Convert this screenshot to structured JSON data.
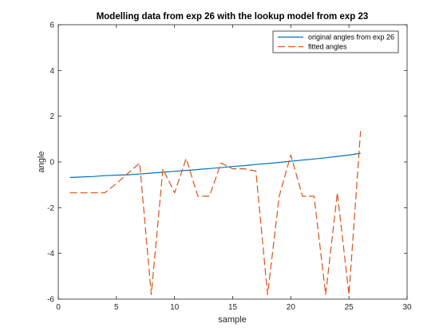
{
  "chart_data": {
    "type": "line",
    "title": "Modelling data from exp 26 with the lookup model from exp 23",
    "xlabel": "sample",
    "ylabel": "angle",
    "xlim": [
      0,
      30
    ],
    "ylim": [
      -6,
      6
    ],
    "xticks": [
      0,
      5,
      10,
      15,
      20,
      25,
      30
    ],
    "yticks": [
      -6,
      -4,
      -2,
      0,
      2,
      4,
      6
    ],
    "grid": false,
    "legend_position": "top-right",
    "series": [
      {
        "name": "original angles from exp 26",
        "style": "solid",
        "color": "#0072BD",
        "x": [
          1,
          2,
          3,
          4,
          5,
          6,
          7,
          8,
          9,
          10,
          11,
          12,
          13,
          14,
          15,
          16,
          17,
          18,
          19,
          20,
          21,
          22,
          23,
          24,
          25,
          26
        ],
        "y": [
          -0.68,
          -0.66,
          -0.64,
          -0.6,
          -0.58,
          -0.56,
          -0.53,
          -0.49,
          -0.45,
          -0.41,
          -0.37,
          -0.33,
          -0.29,
          -0.25,
          -0.2,
          -0.16,
          -0.11,
          -0.07,
          -0.02,
          0.03,
          0.08,
          0.13,
          0.18,
          0.24,
          0.3,
          0.38
        ]
      },
      {
        "name": "fitted angles",
        "style": "dashed",
        "color": "#D95319",
        "x": [
          1,
          2,
          3,
          4,
          5,
          6,
          7,
          8,
          9,
          10,
          11,
          12,
          13,
          14,
          15,
          16,
          17,
          18,
          19,
          20,
          21,
          22,
          23,
          24,
          25,
          26
        ],
        "y": [
          -1.35,
          -1.35,
          -1.35,
          -1.35,
          -0.95,
          -0.5,
          -0.05,
          -5.8,
          -0.3,
          -1.35,
          0.15,
          -1.5,
          -1.5,
          -0.05,
          -0.3,
          -0.3,
          -0.4,
          -5.8,
          -1.5,
          0.3,
          -1.5,
          -1.5,
          -5.8,
          -1.35,
          -5.8,
          1.35
        ]
      }
    ]
  }
}
